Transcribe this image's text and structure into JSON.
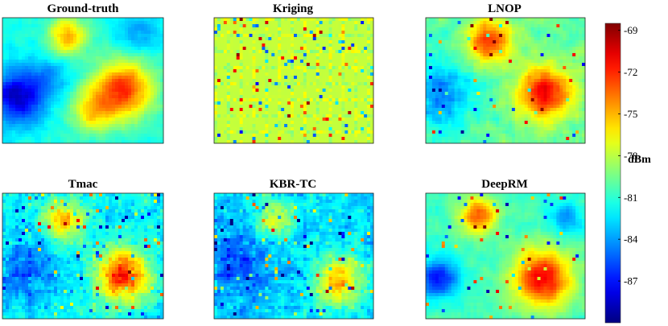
{
  "chart_data": {
    "type": "heatmap",
    "panels": [
      {
        "title": "Ground-truth",
        "base": -81.5,
        "hotspots": [
          {
            "x": 0.4,
            "y": 0.15,
            "amp": 6.5,
            "s": 0.09
          },
          {
            "x": 0.75,
            "y": 0.57,
            "amp": 9.5,
            "s": 0.13
          },
          {
            "x": 0.55,
            "y": 0.75,
            "amp": 5.0,
            "s": 0.1
          },
          {
            "x": 0.1,
            "y": 0.63,
            "amp": -7.0,
            "s": 0.12
          },
          {
            "x": 0.3,
            "y": 0.45,
            "amp": -2.0,
            "s": 0.1
          },
          {
            "x": 0.85,
            "y": 0.12,
            "amp": -2.5,
            "s": 0.1
          }
        ],
        "noise": 1.2,
        "speckle": 0.0
      },
      {
        "title": "Kriging",
        "base": -77.8,
        "hotspots": [],
        "noise": 0.2,
        "speckle": 0.05
      },
      {
        "title": "LNOP",
        "base": -80.0,
        "hotspots": [
          {
            "x": 0.4,
            "y": 0.18,
            "amp": 7.5,
            "s": 0.1
          },
          {
            "x": 0.75,
            "y": 0.6,
            "amp": 9.0,
            "s": 0.12
          },
          {
            "x": 0.1,
            "y": 0.6,
            "amp": -4.5,
            "s": 0.14
          }
        ],
        "noise": 1.8,
        "speckle": 0.02
      },
      {
        "title": "Tmac",
        "base": -82.0,
        "hotspots": [
          {
            "x": 0.38,
            "y": 0.22,
            "amp": 7.0,
            "s": 0.09
          },
          {
            "x": 0.75,
            "y": 0.65,
            "amp": 9.5,
            "s": 0.12
          },
          {
            "x": 0.15,
            "y": 0.6,
            "amp": -3.0,
            "s": 0.15
          }
        ],
        "noise": 2.2,
        "speckle": 0.04
      },
      {
        "title": "KBR-TC",
        "base": -82.5,
        "hotspots": [
          {
            "x": 0.38,
            "y": 0.2,
            "amp": 5.5,
            "s": 0.08
          },
          {
            "x": 0.78,
            "y": 0.7,
            "amp": 7.5,
            "s": 0.11
          },
          {
            "x": 0.15,
            "y": 0.55,
            "amp": -3.0,
            "s": 0.15
          }
        ],
        "noise": 2.4,
        "speckle": 0.04
      },
      {
        "title": "DeepRM",
        "base": -80.5,
        "hotspots": [
          {
            "x": 0.33,
            "y": 0.18,
            "amp": 7.5,
            "s": 0.08
          },
          {
            "x": 0.73,
            "y": 0.68,
            "amp": 9.5,
            "s": 0.13
          },
          {
            "x": 0.08,
            "y": 0.68,
            "amp": -6.5,
            "s": 0.09
          },
          {
            "x": 0.88,
            "y": 0.2,
            "amp": -3.5,
            "s": 0.08
          }
        ],
        "noise": 1.3,
        "speckle": 0.02
      }
    ],
    "colorbar": {
      "label": "dBm",
      "min": -90,
      "max": -68.5,
      "ticks": [
        -69,
        -72,
        -75,
        -78,
        -81,
        -84,
        -87
      ],
      "colormap": "jet"
    }
  }
}
